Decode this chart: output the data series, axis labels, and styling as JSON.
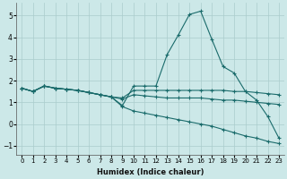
{
  "xlabel": "Humidex (Indice chaleur)",
  "ylabel": "",
  "background_color": "#cce8e8",
  "grid_color": "#aacccc",
  "line_color": "#1a6b6b",
  "xlim": [
    -0.5,
    23.5
  ],
  "ylim": [
    -1.4,
    5.6
  ],
  "yticks": [
    -1,
    0,
    1,
    2,
    3,
    4,
    5
  ],
  "xticks": [
    0,
    1,
    2,
    3,
    4,
    5,
    6,
    7,
    8,
    9,
    10,
    11,
    12,
    13,
    14,
    15,
    16,
    17,
    18,
    19,
    20,
    21,
    22,
    23
  ],
  "series": [
    {
      "x": [
        0,
        1,
        2,
        3,
        4,
        5,
        6,
        7,
        8,
        9,
        10,
        11,
        12,
        13,
        14,
        15,
        16,
        17,
        18,
        19,
        20,
        21,
        22,
        23
      ],
      "y": [
        1.65,
        1.5,
        1.75,
        1.65,
        1.6,
        1.55,
        1.45,
        1.35,
        1.25,
        0.85,
        1.75,
        1.75,
        1.75,
        3.2,
        4.1,
        5.05,
        5.2,
        3.9,
        2.65,
        2.35,
        1.5,
        1.1,
        0.35,
        -0.65
      ]
    },
    {
      "x": [
        0,
        1,
        2,
        3,
        4,
        5,
        6,
        7,
        8,
        9,
        10,
        11,
        12,
        13,
        14,
        15,
        16,
        17,
        18,
        19,
        20,
        21,
        22,
        23
      ],
      "y": [
        1.65,
        1.5,
        1.75,
        1.65,
        1.6,
        1.55,
        1.45,
        1.35,
        1.25,
        1.2,
        1.55,
        1.55,
        1.55,
        1.55,
        1.55,
        1.55,
        1.55,
        1.55,
        1.55,
        1.5,
        1.5,
        1.45,
        1.4,
        1.35
      ]
    },
    {
      "x": [
        0,
        1,
        2,
        3,
        4,
        5,
        6,
        7,
        8,
        9,
        10,
        11,
        12,
        13,
        14,
        15,
        16,
        17,
        18,
        19,
        20,
        21,
        22,
        23
      ],
      "y": [
        1.65,
        1.5,
        1.75,
        1.65,
        1.6,
        1.55,
        1.45,
        1.35,
        1.25,
        1.15,
        1.35,
        1.3,
        1.25,
        1.2,
        1.2,
        1.2,
        1.2,
        1.15,
        1.1,
        1.1,
        1.05,
        1.0,
        0.95,
        0.9
      ]
    },
    {
      "x": [
        0,
        1,
        2,
        3,
        4,
        5,
        6,
        7,
        8,
        9,
        10,
        11,
        12,
        13,
        14,
        15,
        16,
        17,
        18,
        19,
        20,
        21,
        22,
        23
      ],
      "y": [
        1.65,
        1.5,
        1.75,
        1.65,
        1.6,
        1.55,
        1.45,
        1.35,
        1.25,
        0.8,
        0.6,
        0.5,
        0.4,
        0.3,
        0.2,
        0.1,
        0.0,
        -0.1,
        -0.25,
        -0.4,
        -0.55,
        -0.65,
        -0.8,
        -0.9
      ]
    }
  ]
}
